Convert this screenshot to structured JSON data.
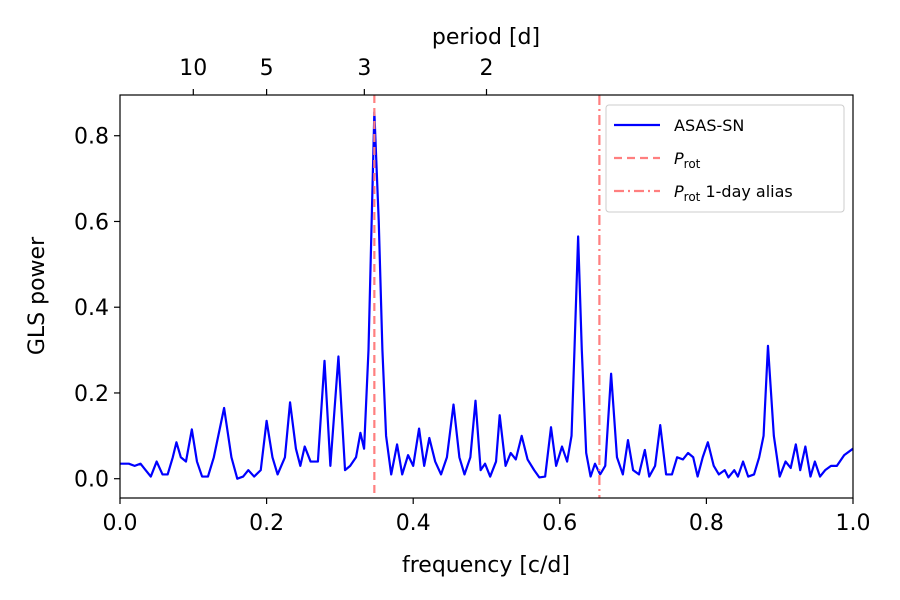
{
  "chart_data": {
    "type": "line",
    "xlabel": "frequency [c/d]",
    "ylabel": "GLS power",
    "top_xlabel": "period [d]",
    "xlim": [
      0.0,
      1.0
    ],
    "ylim": [
      -0.045,
      0.895
    ],
    "x_ticks": [
      0.0,
      0.2,
      0.4,
      0.6,
      0.8,
      1.0
    ],
    "x_tick_labels": [
      "0.0",
      "0.2",
      "0.4",
      "0.6",
      "0.8",
      "1.0"
    ],
    "y_ticks": [
      0.0,
      0.2,
      0.4,
      0.6,
      0.8
    ],
    "y_tick_labels": [
      "0.0",
      "0.2",
      "0.4",
      "0.6",
      "0.8"
    ],
    "top_ticks_period": [
      10,
      5,
      3,
      2
    ],
    "top_tick_labels": [
      "10",
      "5",
      "3",
      "2"
    ],
    "grid": false,
    "legend_position": "top-right",
    "series": [
      {
        "name": "ASAS-SN",
        "color": "#0000ff",
        "points": [
          [
            0.0,
            0.035
          ],
          [
            0.012,
            0.035
          ],
          [
            0.02,
            0.03
          ],
          [
            0.028,
            0.035
          ],
          [
            0.035,
            0.02
          ],
          [
            0.042,
            0.005
          ],
          [
            0.05,
            0.04
          ],
          [
            0.058,
            0.01
          ],
          [
            0.065,
            0.01
          ],
          [
            0.072,
            0.05
          ],
          [
            0.077,
            0.085
          ],
          [
            0.083,
            0.05
          ],
          [
            0.09,
            0.04
          ],
          [
            0.098,
            0.115
          ],
          [
            0.105,
            0.04
          ],
          [
            0.112,
            0.005
          ],
          [
            0.12,
            0.005
          ],
          [
            0.128,
            0.05
          ],
          [
            0.142,
            0.165
          ],
          [
            0.152,
            0.05
          ],
          [
            0.16,
            0.0
          ],
          [
            0.168,
            0.005
          ],
          [
            0.175,
            0.02
          ],
          [
            0.183,
            0.005
          ],
          [
            0.192,
            0.02
          ],
          [
            0.2,
            0.135
          ],
          [
            0.208,
            0.05
          ],
          [
            0.215,
            0.01
          ],
          [
            0.225,
            0.05
          ],
          [
            0.232,
            0.178
          ],
          [
            0.24,
            0.07
          ],
          [
            0.246,
            0.03
          ],
          [
            0.252,
            0.075
          ],
          [
            0.26,
            0.04
          ],
          [
            0.27,
            0.04
          ],
          [
            0.279,
            0.275
          ],
          [
            0.287,
            0.03
          ],
          [
            0.298,
            0.285
          ],
          [
            0.307,
            0.02
          ],
          [
            0.314,
            0.03
          ],
          [
            0.322,
            0.05
          ],
          [
            0.328,
            0.107
          ],
          [
            0.333,
            0.07
          ],
          [
            0.339,
            0.3
          ],
          [
            0.347,
            0.855
          ],
          [
            0.353,
            0.6
          ],
          [
            0.358,
            0.3
          ],
          [
            0.363,
            0.1
          ],
          [
            0.37,
            0.01
          ],
          [
            0.378,
            0.08
          ],
          [
            0.385,
            0.01
          ],
          [
            0.393,
            0.055
          ],
          [
            0.4,
            0.03
          ],
          [
            0.408,
            0.117
          ],
          [
            0.415,
            0.03
          ],
          [
            0.422,
            0.095
          ],
          [
            0.43,
            0.04
          ],
          [
            0.438,
            0.01
          ],
          [
            0.446,
            0.05
          ],
          [
            0.455,
            0.173
          ],
          [
            0.463,
            0.05
          ],
          [
            0.47,
            0.01
          ],
          [
            0.478,
            0.05
          ],
          [
            0.485,
            0.182
          ],
          [
            0.492,
            0.02
          ],
          [
            0.498,
            0.035
          ],
          [
            0.505,
            0.005
          ],
          [
            0.513,
            0.04
          ],
          [
            0.518,
            0.148
          ],
          [
            0.526,
            0.03
          ],
          [
            0.533,
            0.06
          ],
          [
            0.54,
            0.045
          ],
          [
            0.548,
            0.1
          ],
          [
            0.556,
            0.045
          ],
          [
            0.565,
            0.02
          ],
          [
            0.572,
            0.003
          ],
          [
            0.58,
            0.005
          ],
          [
            0.588,
            0.12
          ],
          [
            0.595,
            0.03
          ],
          [
            0.603,
            0.075
          ],
          [
            0.61,
            0.04
          ],
          [
            0.616,
            0.1
          ],
          [
            0.62,
            0.3
          ],
          [
            0.625,
            0.565
          ],
          [
            0.63,
            0.3
          ],
          [
            0.636,
            0.06
          ],
          [
            0.642,
            0.005
          ],
          [
            0.648,
            0.035
          ],
          [
            0.655,
            0.01
          ],
          [
            0.662,
            0.03
          ],
          [
            0.67,
            0.245
          ],
          [
            0.678,
            0.05
          ],
          [
            0.686,
            0.01
          ],
          [
            0.693,
            0.09
          ],
          [
            0.7,
            0.02
          ],
          [
            0.708,
            0.01
          ],
          [
            0.716,
            0.067
          ],
          [
            0.722,
            0.005
          ],
          [
            0.73,
            0.03
          ],
          [
            0.737,
            0.125
          ],
          [
            0.745,
            0.01
          ],
          [
            0.753,
            0.01
          ],
          [
            0.76,
            0.05
          ],
          [
            0.768,
            0.045
          ],
          [
            0.775,
            0.06
          ],
          [
            0.782,
            0.05
          ],
          [
            0.788,
            0.005
          ],
          [
            0.795,
            0.05
          ],
          [
            0.802,
            0.085
          ],
          [
            0.81,
            0.03
          ],
          [
            0.817,
            0.01
          ],
          [
            0.825,
            0.02
          ],
          [
            0.83,
            0.003
          ],
          [
            0.838,
            0.02
          ],
          [
            0.843,
            0.005
          ],
          [
            0.85,
            0.04
          ],
          [
            0.857,
            0.005
          ],
          [
            0.865,
            0.01
          ],
          [
            0.872,
            0.05
          ],
          [
            0.878,
            0.1
          ],
          [
            0.884,
            0.31
          ],
          [
            0.892,
            0.1
          ],
          [
            0.9,
            0.005
          ],
          [
            0.908,
            0.04
          ],
          [
            0.915,
            0.025
          ],
          [
            0.922,
            0.08
          ],
          [
            0.928,
            0.02
          ],
          [
            0.935,
            0.075
          ],
          [
            0.942,
            0.005
          ],
          [
            0.948,
            0.04
          ],
          [
            0.955,
            0.005
          ],
          [
            0.962,
            0.02
          ],
          [
            0.97,
            0.03
          ],
          [
            0.978,
            0.03
          ],
          [
            0.988,
            0.055
          ],
          [
            1.0,
            0.07
          ]
        ]
      }
    ],
    "vlines": [
      {
        "name": "P_rot",
        "x": 0.347,
        "color": "#ff7f7f",
        "style": "dashed"
      },
      {
        "name": "P_rot 1-day alias",
        "x": 0.654,
        "color": "#ff7f7f",
        "style": "dashdot"
      }
    ],
    "legend": [
      {
        "label": "ASAS-SN",
        "style": "solid",
        "color": "#0000ff"
      },
      {
        "label_main": "P",
        "label_sub": "rot",
        "label_suffix": "",
        "style": "dashed",
        "color": "#ff7f7f"
      },
      {
        "label_main": "P",
        "label_sub": "rot",
        "label_suffix": " 1-day alias",
        "style": "dashdot",
        "color": "#ff7f7f"
      }
    ]
  }
}
